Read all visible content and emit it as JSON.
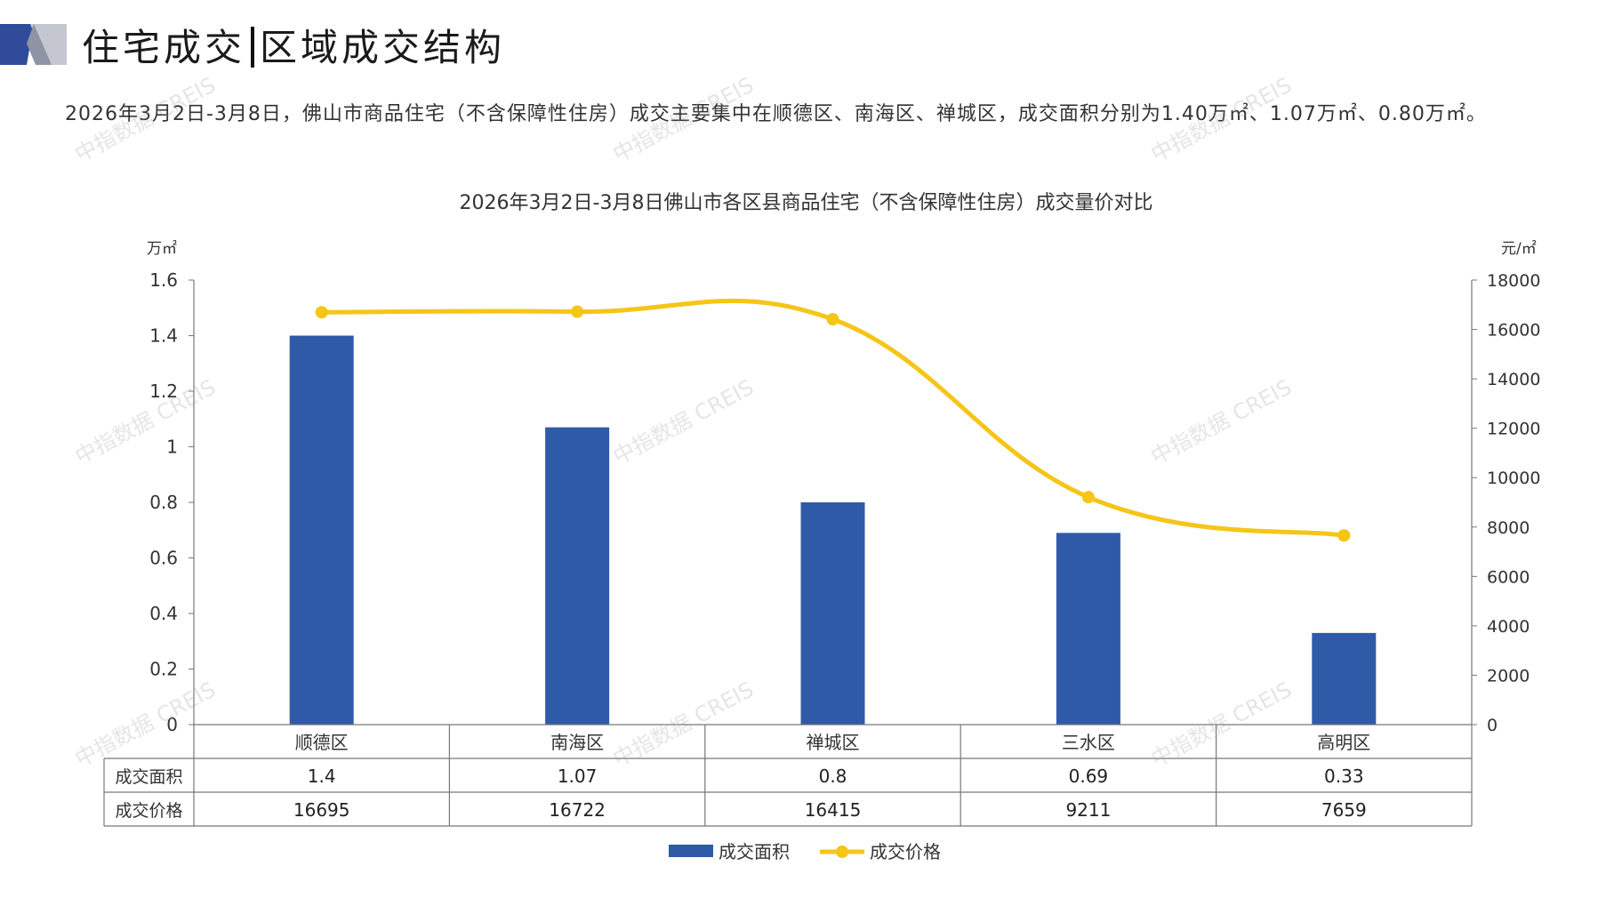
{
  "header": {
    "title_left": "住宅成交",
    "title_right": "区域成交结构",
    "summary": "2026年3月2日-3月8日，佛山市商品住宅（不含保障性住房）成交主要集中在顺德区、南海区、禅城区，成交面积分别为1.40万㎡、1.07万㎡、0.80万㎡。"
  },
  "watermark": "中指数据 CREIS",
  "colors": {
    "bar": "#2f5aa8",
    "line": "#f5c518",
    "brand_dark": "#2f4b9a",
    "brand_grey": "#b9bdc7"
  },
  "chart_data": {
    "type": "bar",
    "title": "2026年3月2日-3月8日佛山市各区县商品住宅（不含保障性住房）成交量价对比",
    "categories": [
      "顺德区",
      "南海区",
      "禅城区",
      "三水区",
      "高明区"
    ],
    "series": [
      {
        "name": "成交面积",
        "type": "bar",
        "axis": "left",
        "values": [
          1.4,
          1.07,
          0.8,
          0.69,
          0.33
        ],
        "display": [
          "1.4",
          "1.07",
          "0.8",
          "0.69",
          "0.33"
        ]
      },
      {
        "name": "成交价格",
        "type": "line",
        "axis": "right",
        "values": [
          16695,
          16722,
          16415,
          9211,
          7659
        ],
        "display": [
          "16695",
          "16722",
          "16415",
          "9211",
          "7659"
        ]
      }
    ],
    "y_left": {
      "unit": "万㎡",
      "min": 0,
      "max": 1.6,
      "ticks": [
        "0",
        "0.2",
        "0.4",
        "0.6",
        "0.8",
        "1",
        "1.2",
        "1.4",
        "1.6"
      ]
    },
    "y_right": {
      "unit": "元/㎡",
      "min": 0,
      "max": 18000,
      "ticks": [
        "0",
        "2000",
        "4000",
        "6000",
        "8000",
        "10000",
        "12000",
        "14000",
        "16000",
        "18000"
      ]
    },
    "legend": "bottom",
    "grid": false,
    "data_table": true
  }
}
